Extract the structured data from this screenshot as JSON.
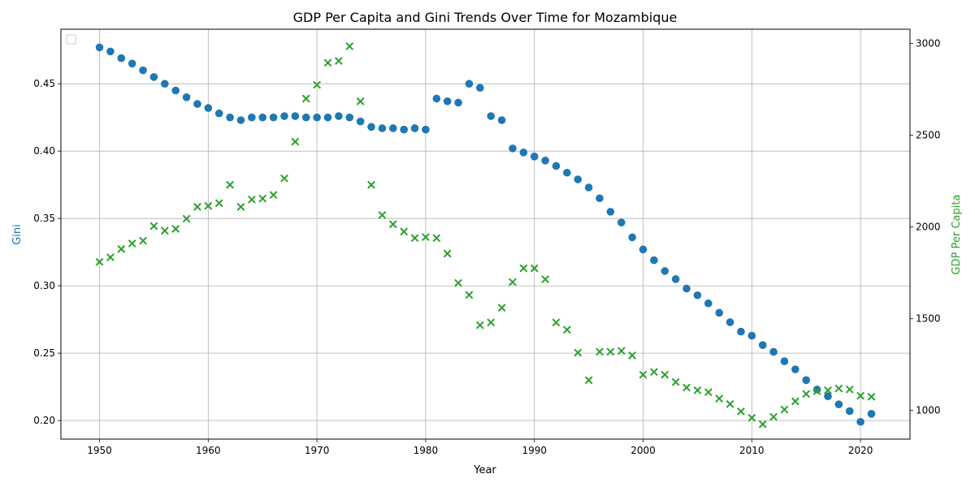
{
  "chart_data": {
    "type": "scatter",
    "title": "GDP Per Capita and Gini Trends Over Time for Mozambique",
    "xlabel": "Year",
    "ylabel_left": "Gini",
    "ylabel_right": "GDP Per Capita",
    "x": [
      1950,
      1951,
      1952,
      1953,
      1954,
      1955,
      1956,
      1957,
      1958,
      1959,
      1960,
      1961,
      1962,
      1963,
      1964,
      1965,
      1966,
      1967,
      1968,
      1969,
      1970,
      1971,
      1972,
      1973,
      1974,
      1975,
      1976,
      1977,
      1978,
      1979,
      1980,
      1981,
      1982,
      1983,
      1984,
      1985,
      1986,
      1987,
      1988,
      1989,
      1990,
      1991,
      1992,
      1993,
      1994,
      1995,
      1996,
      1997,
      1998,
      1999,
      2000,
      2001,
      2002,
      2003,
      2004,
      2005,
      2006,
      2007,
      2008,
      2009,
      2010,
      2011,
      2012,
      2013,
      2014,
      2015,
      2016,
      2017,
      2018,
      2019,
      2020,
      2021
    ],
    "xlim": [
      1946.45,
      2024.55
    ],
    "xticks": [
      "1950",
      "1960",
      "1970",
      "1980",
      "1990",
      "2000",
      "2010",
      "2020"
    ],
    "ylim_left": [
      0.1862,
      0.4905
    ],
    "yticks_left": [
      "0.20",
      "0.25",
      "0.30",
      "0.35",
      "0.40",
      "0.45"
    ],
    "ylim_right": [
      844,
      3078
    ],
    "yticks_right": [
      "1000",
      "1500",
      "2000",
      "2500",
      "3000"
    ],
    "grid": true,
    "legend": "top-left (empty)",
    "series": [
      {
        "axis": "left",
        "marker": "circle",
        "color": "#1f77b4",
        "values": [
          0.477,
          0.474,
          0.469,
          0.465,
          0.46,
          0.455,
          0.45,
          0.445,
          0.44,
          0.435,
          0.432,
          0.428,
          0.425,
          0.423,
          0.425,
          0.425,
          0.425,
          0.426,
          0.426,
          0.425,
          0.425,
          0.425,
          0.426,
          0.425,
          0.422,
          0.418,
          0.417,
          0.417,
          0.416,
          0.417,
          0.416,
          0.439,
          0.437,
          0.436,
          0.45,
          0.447,
          0.426,
          0.423,
          0.402,
          0.399,
          0.396,
          0.393,
          0.389,
          0.384,
          0.379,
          0.373,
          0.365,
          0.355,
          0.347,
          0.336,
          0.327,
          0.319,
          0.311,
          0.305,
          0.298,
          0.293,
          0.287,
          0.28,
          0.273,
          0.266,
          0.263,
          0.256,
          0.251,
          0.244,
          0.238,
          0.23,
          0.223,
          0.218,
          0.212,
          0.207,
          0.199,
          0.205
        ]
      },
      {
        "axis": "right",
        "marker": "x",
        "color": "#2ca02c",
        "values": [
          1810,
          1835,
          1880,
          1910,
          1925,
          2005,
          1980,
          1990,
          2045,
          2110,
          2115,
          2130,
          2230,
          2110,
          2150,
          2155,
          2175,
          2265,
          2465,
          2700,
          2775,
          2895,
          2905,
          2985,
          2685,
          2230,
          2065,
          2015,
          1975,
          1940,
          1945,
          1940,
          1855,
          1695,
          1630,
          1465,
          1480,
          1560,
          1700,
          1775,
          1775,
          1715,
          1480,
          1440,
          1315,
          1165,
          1320,
          1320,
          1325,
          1300,
          1195,
          1210,
          1195,
          1155,
          1125,
          1110,
          1100,
          1065,
          1035,
          995,
          960,
          925,
          965,
          1005,
          1050,
          1090,
          1105,
          1110,
          1120,
          1115,
          1080,
          1075
        ]
      }
    ]
  },
  "colors": {
    "gini": "#1f77b4",
    "gdp": "#2ca02c",
    "grid": "#b0b0b0",
    "axis": "#000000"
  }
}
